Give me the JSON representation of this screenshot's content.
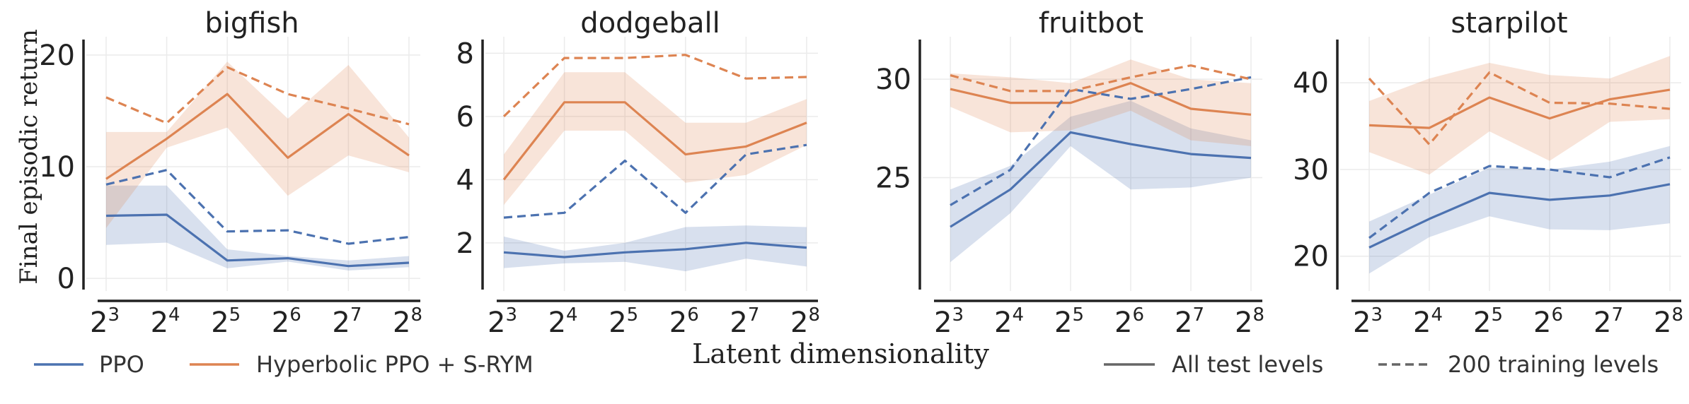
{
  "figure": {
    "ylabel": "Final episodic return",
    "xlabel": "Latent  dimensionality",
    "x_ticks": [
      "2^3",
      "2^4",
      "2^5",
      "2^6",
      "2^7",
      "2^8"
    ],
    "legend": [
      {
        "label": "PPO",
        "color": "#4c72b0",
        "style": "solid"
      },
      {
        "label": "Hyperbolic PPO + S-RYM",
        "color": "#dd8452",
        "style": "solid"
      },
      {
        "label": "All test levels",
        "color": "#666666",
        "style": "solid"
      },
      {
        "label": "200 training levels",
        "color": "#666666",
        "style": "dashed"
      }
    ]
  },
  "chart_data": [
    {
      "type": "line",
      "title": "bigfish",
      "x": [
        3,
        4,
        5,
        6,
        7,
        8
      ],
      "ylim": [
        -0.5,
        21
      ],
      "yticks": [
        0,
        10,
        20
      ],
      "series": [
        {
          "name": "PPO",
          "variant": "All test levels",
          "color": "#4c72b0",
          "dash": false,
          "values": [
            5.6,
            5.7,
            1.6,
            1.8,
            1.1,
            1.4
          ],
          "lower": [
            3.0,
            3.2,
            0.9,
            1.5,
            0.7,
            1.0
          ],
          "upper": [
            8.3,
            8.3,
            2.6,
            2.0,
            1.6,
            2.0
          ]
        },
        {
          "name": "Hyperbolic PPO + S-RYM",
          "variant": "All test levels",
          "color": "#dd8452",
          "dash": false,
          "values": [
            8.9,
            12.5,
            16.5,
            10.8,
            14.7,
            11.0
          ],
          "lower": [
            4.5,
            11.7,
            13.5,
            7.4,
            11.0,
            9.5
          ],
          "upper": [
            13.1,
            13.1,
            19.4,
            14.3,
            19.1,
            12.6
          ]
        },
        {
          "name": "PPO",
          "variant": "200 training levels",
          "color": "#4c72b0",
          "dash": true,
          "values": [
            8.4,
            9.7,
            4.2,
            4.3,
            3.1,
            3.7
          ]
        },
        {
          "name": "Hyperbolic PPO + S-RYM",
          "variant": "200 training levels",
          "color": "#dd8452",
          "dash": true,
          "values": [
            16.2,
            13.9,
            18.9,
            16.5,
            15.2,
            13.8
          ]
        }
      ]
    },
    {
      "type": "line",
      "title": "dodgeball",
      "x": [
        3,
        4,
        5,
        6,
        7,
        8
      ],
      "ylim": [
        0.7,
        8.3
      ],
      "yticks": [
        2,
        4,
        6,
        8
      ],
      "series": [
        {
          "name": "PPO",
          "variant": "All test levels",
          "color": "#4c72b0",
          "dash": false,
          "values": [
            1.7,
            1.55,
            1.7,
            1.8,
            2.0,
            1.85
          ],
          "lower": [
            1.2,
            1.35,
            1.4,
            1.1,
            1.5,
            1.25
          ],
          "upper": [
            2.2,
            1.75,
            2.0,
            2.5,
            2.55,
            2.5
          ]
        },
        {
          "name": "Hyperbolic PPO + S-RYM",
          "variant": "All test levels",
          "color": "#dd8452",
          "dash": false,
          "values": [
            4.0,
            6.45,
            6.45,
            4.8,
            5.05,
            5.8
          ],
          "lower": [
            3.2,
            5.55,
            5.55,
            3.9,
            4.15,
            5.1
          ],
          "upper": [
            4.8,
            7.4,
            7.4,
            5.8,
            5.8,
            6.55
          ]
        },
        {
          "name": "PPO",
          "variant": "200 training levels",
          "color": "#4c72b0",
          "dash": true,
          "values": [
            2.8,
            2.95,
            4.6,
            2.95,
            4.8,
            5.1
          ]
        },
        {
          "name": "Hyperbolic PPO + S-RYM",
          "variant": "200 training levels",
          "color": "#dd8452",
          "dash": true,
          "values": [
            6.0,
            7.85,
            7.85,
            7.95,
            7.2,
            7.25
          ]
        }
      ]
    },
    {
      "type": "line",
      "title": "fruitbot",
      "x": [
        3,
        4,
        5,
        6,
        7,
        8
      ],
      "ylim": [
        19.6,
        31.8
      ],
      "yticks": [
        25,
        30
      ],
      "series": [
        {
          "name": "PPO",
          "variant": "All test levels",
          "color": "#4c72b0",
          "dash": false,
          "values": [
            22.5,
            24.4,
            27.3,
            26.7,
            26.2,
            26.0
          ],
          "lower": [
            20.7,
            23.2,
            26.6,
            24.4,
            24.5,
            25.0
          ],
          "upper": [
            24.4,
            25.6,
            28.1,
            28.9,
            27.5,
            26.9
          ]
        },
        {
          "name": "Hyperbolic PPO + S-RYM",
          "variant": "All test levels",
          "color": "#dd8452",
          "dash": false,
          "values": [
            29.5,
            28.8,
            28.8,
            29.8,
            28.5,
            28.2
          ],
          "lower": [
            28.6,
            27.3,
            27.4,
            28.4,
            26.9,
            26.6
          ],
          "upper": [
            30.3,
            30.1,
            29.8,
            31.0,
            30.0,
            29.8
          ]
        },
        {
          "name": "PPO",
          "variant": "200 training levels",
          "color": "#4c72b0",
          "dash": true,
          "values": [
            23.6,
            25.4,
            29.5,
            29.0,
            29.5,
            30.1
          ]
        },
        {
          "name": "Hyperbolic PPO + S-RYM",
          "variant": "200 training levels",
          "color": "#dd8452",
          "dash": true,
          "values": [
            30.2,
            29.4,
            29.4,
            30.1,
            30.7,
            30.0
          ]
        }
      ]
    },
    {
      "type": "line",
      "title": "starpilot",
      "x": [
        3,
        4,
        5,
        6,
        7,
        8
      ],
      "ylim": [
        16.8,
        44.5
      ],
      "yticks": [
        20,
        30,
        40
      ],
      "series": [
        {
          "name": "PPO",
          "variant": "All test levels",
          "color": "#4c72b0",
          "dash": false,
          "values": [
            21.0,
            24.3,
            27.3,
            26.5,
            27.0,
            28.3
          ],
          "lower": [
            18.0,
            22.2,
            24.6,
            23.1,
            23.0,
            23.8
          ],
          "upper": [
            24.0,
            27.1,
            30.2,
            30.0,
            30.9,
            32.7
          ]
        },
        {
          "name": "Hyperbolic PPO + S-RYM",
          "variant": "All test levels",
          "color": "#dd8452",
          "dash": false,
          "values": [
            35.1,
            34.8,
            38.3,
            35.9,
            38.1,
            39.2
          ],
          "lower": [
            32.0,
            29.4,
            34.4,
            31.0,
            35.5,
            35.8
          ],
          "upper": [
            37.9,
            40.5,
            42.3,
            40.9,
            40.5,
            43.1
          ]
        },
        {
          "name": "PPO",
          "variant": "200 training levels",
          "color": "#4c72b0",
          "dash": true,
          "values": [
            22.1,
            27.3,
            30.4,
            30.0,
            29.1,
            31.4
          ]
        },
        {
          "name": "Hyperbolic PPO + S-RYM",
          "variant": "200 training levels",
          "color": "#dd8452",
          "dash": true,
          "values": [
            40.5,
            32.9,
            41.2,
            37.7,
            37.6,
            37.0
          ]
        }
      ]
    }
  ]
}
